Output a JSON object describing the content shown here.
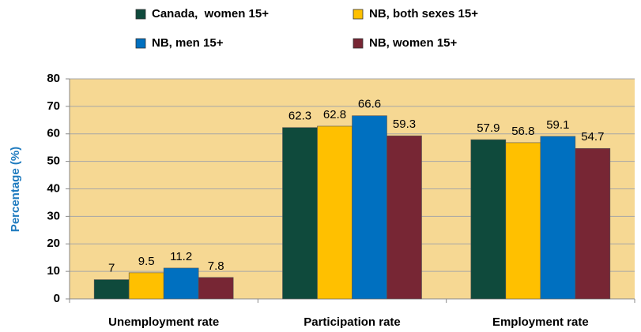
{
  "chart_data": {
    "type": "bar",
    "categories": [
      "Unemployment rate",
      "Participation rate",
      "Employment rate"
    ],
    "series": [
      {
        "name": "Canada,  women 15+",
        "color": "#0f4a3c",
        "values": [
          7,
          62.3,
          57.9
        ]
      },
      {
        "name": "NB, both sexes 15+",
        "color": "#ffc000",
        "values": [
          9.5,
          62.8,
          56.8
        ]
      },
      {
        "name": "NB, men 15+",
        "color": "#0070c0",
        "values": [
          11.2,
          66.6,
          59.1
        ]
      },
      {
        "name": "NB, women 15+",
        "color": "#772634",
        "values": [
          7.8,
          59.3,
          54.7
        ]
      }
    ],
    "ylabel": "Percentage (%)",
    "ylim": [
      0,
      80
    ],
    "yticks": [
      0,
      10,
      20,
      30,
      40,
      50,
      60,
      70,
      80
    ],
    "grid": true,
    "legend": "top"
  }
}
